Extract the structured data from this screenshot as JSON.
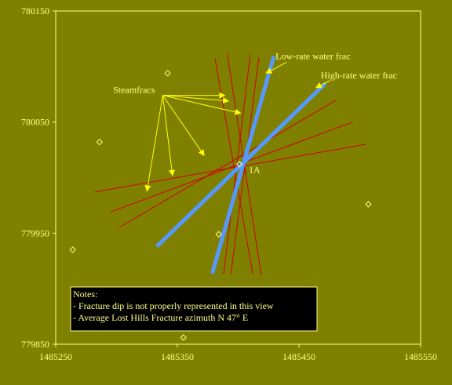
{
  "chart_data": {
    "type": "scatter",
    "title": "",
    "xlabel": "",
    "ylabel": "",
    "xlim": [
      1485250,
      1485550
    ],
    "ylim": [
      779850,
      780150
    ],
    "x_ticks": [
      {
        "value": 1485250,
        "label": "1485250"
      },
      {
        "value": 1485350,
        "label": "1485350"
      },
      {
        "value": 1485450,
        "label": "1485450"
      },
      {
        "value": 1485550,
        "label": "1485550"
      }
    ],
    "y_ticks": [
      {
        "value": 780150,
        "label": "780150"
      },
      {
        "value": 780050,
        "label": "780050"
      },
      {
        "value": 779950,
        "label": "779950"
      },
      {
        "value": 779850,
        "label": "779850"
      }
    ],
    "grid": false,
    "wells": [
      {
        "x": 1485342,
        "y": 780094
      },
      {
        "x": 1485286,
        "y": 780032
      },
      {
        "x": 1485507,
        "y": 779976
      },
      {
        "x": 1485384,
        "y": 779949
      },
      {
        "x": 1485264,
        "y": 779935
      },
      {
        "x": 1485355,
        "y": 779856
      }
    ],
    "center_well": {
      "x": 1485401,
      "y": 780012,
      "label": "1A"
    },
    "steamfracs": [
      {
        "x1": 1485282,
        "y1": 779987,
        "x2": 1485505,
        "y2": 780030
      },
      {
        "x1": 1485295,
        "y1": 779969,
        "x2": 1485494,
        "y2": 780050
      },
      {
        "x1": 1485302,
        "y1": 779955,
        "x2": 1485481,
        "y2": 780070
      },
      {
        "x1": 1485391,
        "y1": 780112,
        "x2": 1485419,
        "y2": 779912
      },
      {
        "x1": 1485381,
        "y1": 780107,
        "x2": 1485412,
        "y2": 779913
      },
      {
        "x1": 1485410,
        "y1": 780111,
        "x2": 1485388,
        "y2": 779913
      },
      {
        "x1": 1485417,
        "y1": 780108,
        "x2": 1485394,
        "y2": 779913
      }
    ],
    "series": [
      {
        "name": "Low-rate water frac",
        "x1": 1485379,
        "y1": 779915,
        "x2": 1485429,
        "y2": 780108,
        "color": "#5599ff"
      },
      {
        "name": "High-rate water frac",
        "x1": 1485334,
        "y1": 779939,
        "x2": 1485471,
        "y2": 780084,
        "color": "#5599ff"
      }
    ],
    "callouts": {
      "steamfracs": {
        "text": "Steamfracs",
        "anchor": {
          "x": 1485338,
          "y": 780074
        },
        "targets": [
          {
            "x": 1485389,
            "y": 780074
          },
          {
            "x": 1485392,
            "y": 780069
          },
          {
            "x": 1485402,
            "y": 780058
          },
          {
            "x": 1485372,
            "y": 780020
          },
          {
            "x": 1485346,
            "y": 780002
          },
          {
            "x": 1485325,
            "y": 779988
          }
        ]
      },
      "low_rate": {
        "text": "Low-rate water frac",
        "target": {
          "x": 1485423,
          "y": 780094
        }
      },
      "high_rate": {
        "text": "High-rate water frac",
        "target": {
          "x": 1485464,
          "y": 780081
        }
      }
    },
    "steam_color": "#cc0000",
    "callout_color": "#ffff00",
    "axis_color": "#ffff88"
  },
  "notes": {
    "title": "Notes:",
    "lines": [
      "- Fracture dip is not properly represented in this view",
      "- Average Lost Hills Fracture azimuth N 47° E"
    ]
  }
}
